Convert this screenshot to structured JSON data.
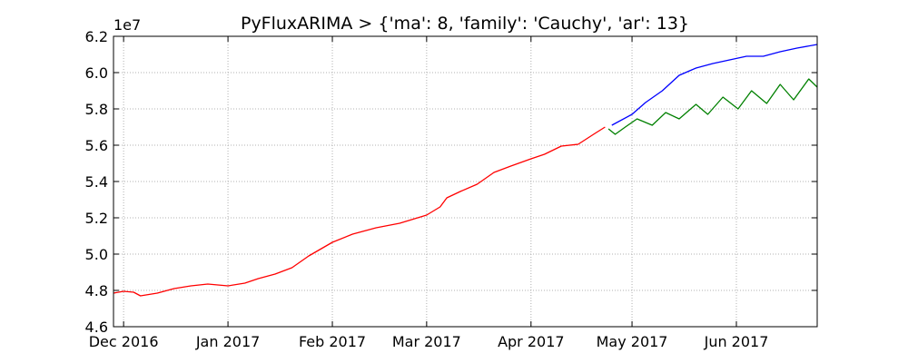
{
  "chart_data": {
    "type": "line",
    "title": "PyFluxARIMA > {'ma': 8, 'family': 'Cauchy', 'ar': 13}",
    "y_offset_label": "1e7",
    "xlim": [
      -3,
      206
    ],
    "xticks": [
      {
        "value": 0,
        "label": "Dec 2016"
      },
      {
        "value": 31,
        "label": "Jan 2017"
      },
      {
        "value": 62,
        "label": "Feb 2017"
      },
      {
        "value": 90,
        "label": "Mar 2017"
      },
      {
        "value": 121,
        "label": "Apr 2017"
      },
      {
        "value": 151,
        "label": "May 2017"
      },
      {
        "value": 182,
        "label": "Jun 2017"
      }
    ],
    "ylim": [
      4.6,
      6.2
    ],
    "yticks": [
      4.6,
      4.8,
      {
        "value": 5,
        "label": "5.0"
      },
      5.2,
      5.4,
      5.6,
      5.8,
      {
        "value": 6,
        "label": "6.0"
      },
      6.2
    ],
    "grid": true,
    "series": [
      {
        "color": "#ff0000",
        "x": [
          -3,
          0,
          3,
          5,
          10,
          15,
          20,
          25,
          31,
          36,
          40,
          45,
          50,
          55,
          62,
          68,
          75,
          82,
          90,
          94,
          96,
          100,
          105,
          110,
          115,
          121,
          125,
          130,
          135,
          140,
          143
        ],
        "values": [
          4.785,
          4.795,
          4.79,
          4.77,
          4.785,
          4.81,
          4.825,
          4.835,
          4.825,
          4.84,
          4.865,
          4.89,
          4.925,
          4.99,
          5.065,
          5.11,
          5.145,
          5.17,
          5.215,
          5.26,
          5.31,
          5.345,
          5.385,
          5.45,
          5.485,
          5.525,
          5.55,
          5.595,
          5.605,
          5.665,
          5.7
        ]
      },
      {
        "color": "#0000ff",
        "x": [
          145,
          151,
          155,
          160,
          165,
          170,
          175,
          180,
          185,
          190,
          195,
          200,
          206
        ],
        "values": [
          5.71,
          5.77,
          5.835,
          5.9,
          5.985,
          6.025,
          6.05,
          6.07,
          6.09,
          6.09,
          6.115,
          6.135,
          6.155
        ]
      },
      {
        "color": "#008000",
        "x": [
          144,
          146,
          149,
          152.5,
          157,
          161,
          165,
          170,
          173.5,
          178,
          182.5,
          186.5,
          191,
          195,
          199,
          203.5,
          206
        ],
        "values": [
          5.69,
          5.66,
          5.7,
          5.745,
          5.71,
          5.78,
          5.745,
          5.825,
          5.77,
          5.865,
          5.8,
          5.9,
          5.83,
          5.935,
          5.85,
          5.965,
          5.92
        ]
      }
    ]
  }
}
